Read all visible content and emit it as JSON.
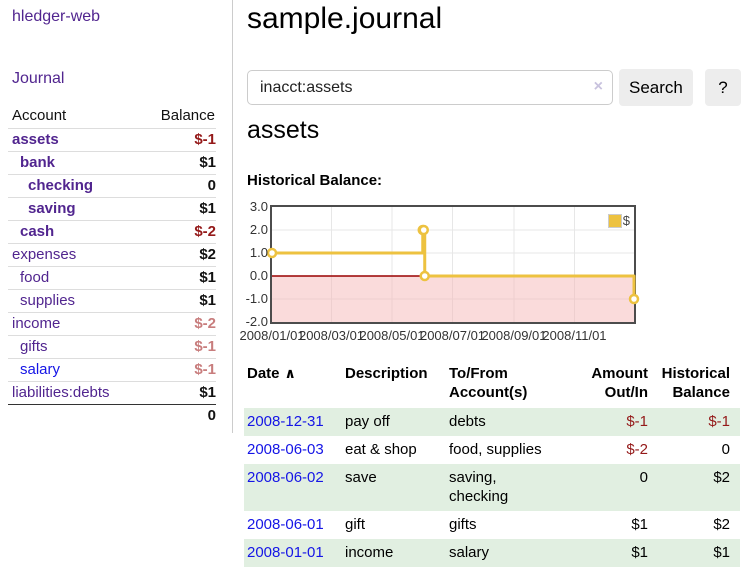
{
  "colors": {
    "link_purple": "#51258f",
    "link_blue": "#1515e6",
    "negative_strong": "#941919",
    "negative_soft": "#c87d7d",
    "row_shade_green": "#e1efe1",
    "chart_line_gold": "#edc240",
    "chart_negative_fill": "#f5b8b8",
    "chart_zero_line": "#990000"
  },
  "sidebar": {
    "brand": "hledger-web",
    "nav_journal": "Journal",
    "accounts": {
      "headers": [
        "Account",
        "Balance"
      ],
      "rows": [
        {
          "name": "assets",
          "level": 1,
          "bold": true,
          "balance": "$-1",
          "balance_style": "neg-strong"
        },
        {
          "name": "bank",
          "level": 2,
          "bold": true,
          "balance": "$1",
          "balance_style": "pos"
        },
        {
          "name": "checking",
          "level": 3,
          "bold": true,
          "balance": "0",
          "balance_style": "pos"
        },
        {
          "name": "saving",
          "level": 3,
          "bold": true,
          "balance": "$1",
          "balance_style": "pos"
        },
        {
          "name": "cash",
          "level": 2,
          "bold": true,
          "balance": "$-2",
          "balance_style": "neg-strong"
        },
        {
          "name": "expenses",
          "level": 1,
          "bold": false,
          "balance": "$2",
          "balance_style": "pos"
        },
        {
          "name": "food",
          "level": 2,
          "bold": false,
          "balance": "$1",
          "balance_style": "pos"
        },
        {
          "name": "supplies",
          "level": 2,
          "bold": false,
          "balance": "$1",
          "balance_style": "pos"
        },
        {
          "name": "income",
          "level": 1,
          "bold": false,
          "balance": "$-2",
          "balance_style": "neg-soft"
        },
        {
          "name": "gifts",
          "level": 2,
          "bold": false,
          "balance": "$-1",
          "balance_style": "neg-soft"
        },
        {
          "name": "salary",
          "level": 2,
          "bold": false,
          "balance": "$-1",
          "balance_style": "neg-soft",
          "link_color": "blue"
        },
        {
          "name": "liabilities:debts",
          "level": 1,
          "bold": false,
          "balance": "$1",
          "balance_style": "pos"
        }
      ],
      "total": "0"
    }
  },
  "header": {
    "title": "sample.journal"
  },
  "search": {
    "value": "inacct:assets",
    "clear_icon": "×",
    "button_label": "Search",
    "help_label": "?"
  },
  "account_page": {
    "heading": "assets",
    "chart_label": "Historical Balance:"
  },
  "chart_data": {
    "type": "line",
    "title": "Historical Balance",
    "x_type": "date",
    "xrange": [
      "2008-01-01",
      "2008-12-31"
    ],
    "ylim": [
      -2,
      3
    ],
    "yticks": [
      "3.0",
      "2.0",
      "1.0",
      "0.0",
      "-1.0",
      "-2.0"
    ],
    "xticks": [
      "2008/01/01",
      "2008/03/01",
      "2008/05/01",
      "2008/07/01",
      "2008/09/01",
      "2008/11/01"
    ],
    "grid": true,
    "legend_position": "top-right",
    "series": [
      {
        "name": "$",
        "color": "#edc240",
        "steps": true,
        "points": [
          {
            "x": "2008-01-01",
            "y": 1
          },
          {
            "x": "2008-06-01",
            "y": 2
          },
          {
            "x": "2008-06-02",
            "y": 2
          },
          {
            "x": "2008-06-03",
            "y": 0
          },
          {
            "x": "2008-12-31",
            "y": -1
          }
        ]
      }
    ],
    "negative_region_color": "#f5b8b8",
    "zero_line_color": "#990000"
  },
  "register": {
    "sort_indicator": "∧",
    "columns": [
      {
        "label": "Date",
        "align": "left",
        "sorted": true
      },
      {
        "label": "Description",
        "align": "left"
      },
      {
        "label": "To/From Account(s)",
        "align": "left"
      },
      {
        "label": "Amount Out/In",
        "align": "right"
      },
      {
        "label": "Historical Balance",
        "align": "right"
      }
    ],
    "rows": [
      {
        "date": "2008-12-31",
        "description": "pay off",
        "accounts": "debts",
        "amount": "$-1",
        "amount_negative": true,
        "balance": "$-1",
        "balance_negative": true,
        "shaded": true
      },
      {
        "date": "2008-06-03",
        "description": "eat & shop",
        "accounts": "food, supplies",
        "amount": "$-2",
        "amount_negative": true,
        "balance": "0",
        "balance_negative": false,
        "shaded": false
      },
      {
        "date": "2008-06-02",
        "description": "save",
        "accounts": "saving, checking",
        "amount": "0",
        "amount_negative": false,
        "balance": "$2",
        "balance_negative": false,
        "shaded": true
      },
      {
        "date": "2008-06-01",
        "description": "gift",
        "accounts": "gifts",
        "amount": "$1",
        "amount_negative": false,
        "balance": "$2",
        "balance_negative": false,
        "shaded": false
      },
      {
        "date": "2008-01-01",
        "description": "income",
        "accounts": "salary",
        "amount": "$1",
        "amount_negative": false,
        "balance": "$1",
        "balance_negative": false,
        "shaded": true
      }
    ]
  }
}
